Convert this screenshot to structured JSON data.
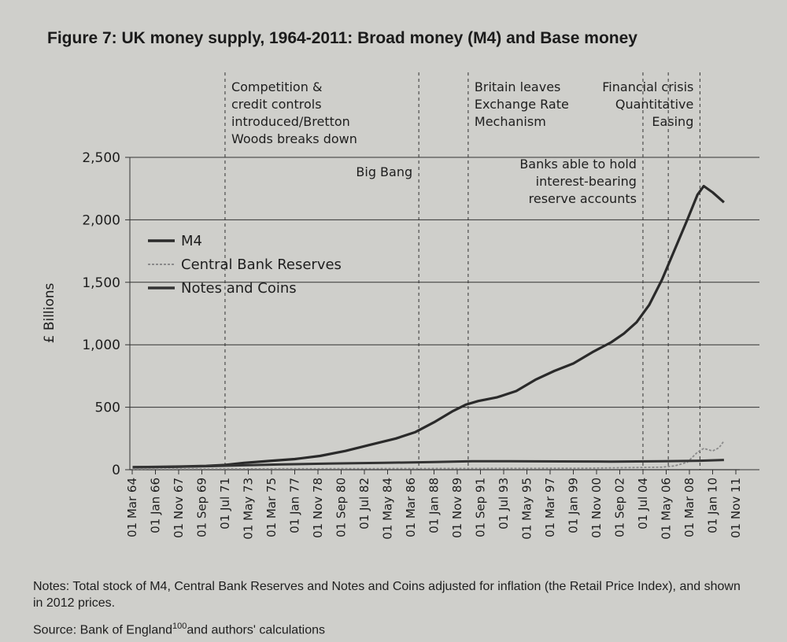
{
  "chart_data": {
    "type": "line",
    "title": "Figure 7: UK money supply, 1964-2011: Broad money (M4) and Base money",
    "ylabel": "£ Billions",
    "xlabel": "",
    "ylim": [
      0,
      2500
    ],
    "yticks": [
      0,
      500,
      1000,
      1500,
      2000,
      2500
    ],
    "ytick_labels": [
      "0",
      "500",
      "1,000",
      "1,500",
      "2,000",
      "2,500"
    ],
    "x_tick_labels": [
      "01 Mar 64",
      "01 Jan 66",
      "01 Nov 67",
      "01 Sep 69",
      "01 Jul 71",
      "01 May 73",
      "01 Mar 75",
      "01 Jan 77",
      "01 Nov 78",
      "01 Sep 80",
      "01 Jul 82",
      "01 May 84",
      "01 Mar 86",
      "01 Jan 88",
      "01 Nov 89",
      "01 Sep 91",
      "01 Jul 93",
      "01 May 95",
      "01 Mar 97",
      "01 Jan 99",
      "01 Nov 00",
      "01 Sep 02",
      "01 Jul 04",
      "01 May 06",
      "01 Mar 08",
      "01 Jan 10",
      "01 Nov 11"
    ],
    "x_start_year": 1964.17,
    "x_tick_step_years": 1.8333,
    "grid": true,
    "legend_position": "top-left",
    "series": [
      {
        "name": "M4",
        "color": "#2a2a2a",
        "points": [
          [
            1964.2,
            20
          ],
          [
            1966,
            22
          ],
          [
            1968,
            25
          ],
          [
            1970,
            30
          ],
          [
            1971.5,
            38
          ],
          [
            1973,
            55
          ],
          [
            1975,
            70
          ],
          [
            1977,
            85
          ],
          [
            1979,
            110
          ],
          [
            1981,
            150
          ],
          [
            1983,
            200
          ],
          [
            1985,
            250
          ],
          [
            1986.5,
            300
          ],
          [
            1988,
            380
          ],
          [
            1989.5,
            470
          ],
          [
            1990.5,
            520
          ],
          [
            1991.5,
            550
          ],
          [
            1993,
            580
          ],
          [
            1994.5,
            630
          ],
          [
            1996,
            720
          ],
          [
            1997.5,
            790
          ],
          [
            1999,
            850
          ],
          [
            2000.5,
            940
          ],
          [
            2002,
            1020
          ],
          [
            2003,
            1090
          ],
          [
            2004,
            1180
          ],
          [
            2005,
            1320
          ],
          [
            2006,
            1520
          ],
          [
            2007,
            1760
          ],
          [
            2008,
            2000
          ],
          [
            2008.8,
            2200
          ],
          [
            2009.3,
            2270
          ],
          [
            2010,
            2220
          ],
          [
            2010.9,
            2140
          ]
        ]
      },
      {
        "name": "Central Bank Reserves",
        "color": "#8a8a8a",
        "points": [
          [
            1964.2,
            5
          ],
          [
            1970,
            6
          ],
          [
            1980,
            8
          ],
          [
            1990,
            10
          ],
          [
            2000,
            12
          ],
          [
            2006,
            20
          ],
          [
            2007,
            30
          ],
          [
            2008,
            60
          ],
          [
            2008.8,
            140
          ],
          [
            2009.3,
            170
          ],
          [
            2010,
            150
          ],
          [
            2010.5,
            175
          ],
          [
            2010.9,
            230
          ]
        ]
      },
      {
        "name": "Notes and Coins",
        "color": "#333333",
        "points": [
          [
            1964.2,
            20
          ],
          [
            1967,
            22
          ],
          [
            1970,
            28
          ],
          [
            1973,
            35
          ],
          [
            1976,
            42
          ],
          [
            1980,
            50
          ],
          [
            1984,
            55
          ],
          [
            1988,
            62
          ],
          [
            1991,
            68
          ],
          [
            1994,
            68
          ],
          [
            1998,
            66
          ],
          [
            2002,
            65
          ],
          [
            2006,
            68
          ],
          [
            2009,
            72
          ],
          [
            2010.9,
            78
          ]
        ]
      }
    ],
    "annotations": [
      {
        "x": 1971.5,
        "lines": [
          "Competition &",
          "credit controls",
          "introduced/Bretton",
          "Woods breaks down"
        ],
        "align": "start"
      },
      {
        "x": 1986.8,
        "lines": [
          "Big Bang"
        ],
        "align": "end"
      },
      {
        "x": 1990.7,
        "lines": [
          "Britain leaves",
          "Exchange Rate",
          "Mechanism"
        ],
        "align": "start"
      },
      {
        "x": 2004.5,
        "lines": [
          "Banks able to hold",
          "interest-bearing",
          "reserve accounts"
        ],
        "align": "end"
      },
      {
        "x": 2006.5,
        "lines": [],
        "align": "end"
      },
      {
        "x": 2009.0,
        "lines": [
          "Financial crisis",
          "Quantitative",
          "Easing"
        ],
        "align": "end"
      }
    ]
  },
  "notes": "Notes: Total stock of M4, Central Bank Reserves and Notes and Coins adjusted for inflation (the Retail Price Index), and shown in 2012 prices.",
  "source": "Source: Bank of England",
  "source_ref": "100",
  "source_tail": "and authors' calculations"
}
